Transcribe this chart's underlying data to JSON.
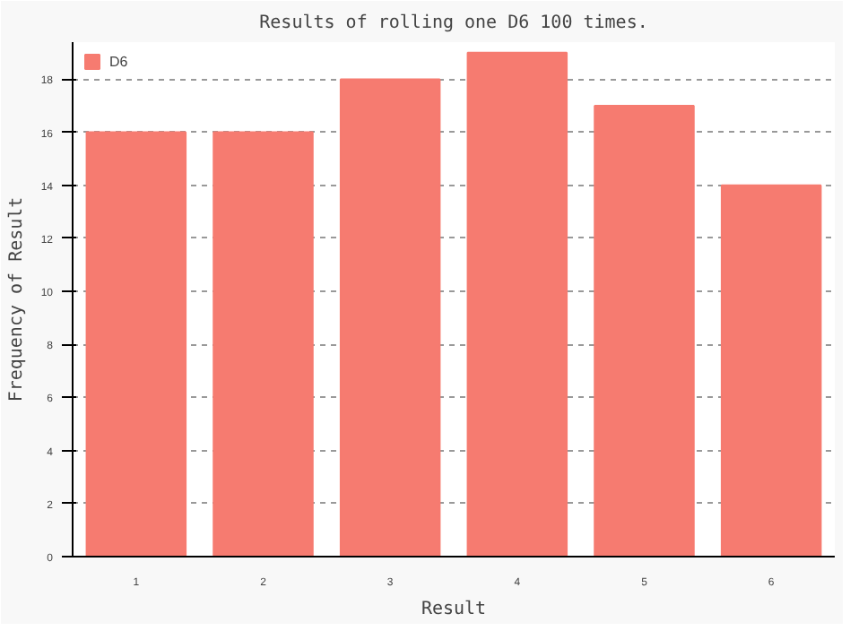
{
  "chart_data": {
    "type": "bar",
    "title": "Results of rolling one D6 100 times.",
    "xlabel": "Result",
    "ylabel": "Frequency of Result",
    "categories": [
      "1",
      "2",
      "3",
      "4",
      "5",
      "6"
    ],
    "series": [
      {
        "name": "D6",
        "color": "#f67b70",
        "values": [
          16,
          16,
          18,
          19,
          17,
          14
        ]
      }
    ],
    "ylim": [
      0,
      19.4
    ],
    "yticks": [
      0,
      2,
      4,
      6,
      8,
      10,
      12,
      14,
      16,
      18
    ],
    "grid": "y",
    "legend": "top left"
  }
}
